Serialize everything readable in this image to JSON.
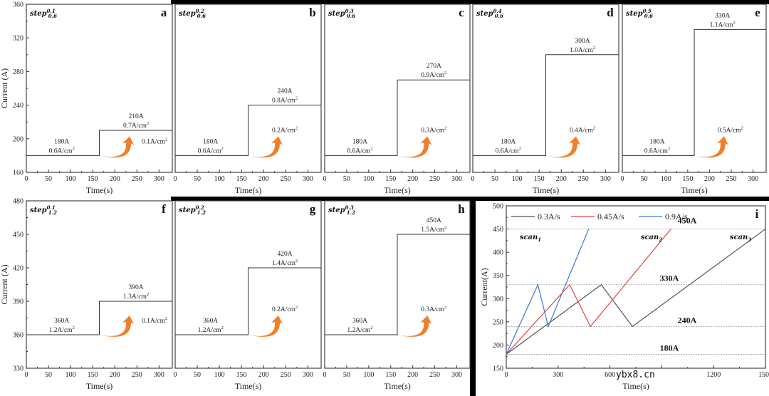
{
  "chart_data": [
    {
      "id": "a",
      "type": "line",
      "letter": "a",
      "step_label": {
        "base": "step",
        "sup": "0.1",
        "sub": "0.6"
      },
      "xlabel": "Time(s)",
      "ylabel": "Current (A)",
      "xlim": [
        0,
        330
      ],
      "ylim": [
        160,
        360
      ],
      "xticks": [
        0,
        50,
        100,
        150,
        200,
        250,
        300
      ],
      "yticks": [
        160,
        200,
        240,
        280,
        320,
        360
      ],
      "x": [
        0,
        165,
        165,
        330
      ],
      "y": [
        180,
        180,
        210,
        210
      ],
      "low": {
        "current": "180A",
        "density": "0.6A/cm",
        "sup": "2"
      },
      "high": {
        "current": "210A",
        "density": "0.7A/cm",
        "sup": "2"
      },
      "step": {
        "density": "0.1A/cm",
        "sup": "2"
      }
    },
    {
      "id": "b",
      "type": "line",
      "letter": "b",
      "step_label": {
        "base": "step",
        "sup": "0.2",
        "sub": "0.6"
      },
      "xlabel": "Time(s)",
      "ylabel": "",
      "xlim": [
        0,
        330
      ],
      "ylim": [
        160,
        360
      ],
      "xticks": [
        0,
        50,
        100,
        150,
        200,
        250,
        300
      ],
      "yticks": [],
      "x": [
        0,
        165,
        165,
        330
      ],
      "y": [
        180,
        180,
        240,
        240
      ],
      "low": {
        "current": "180A",
        "density": "0.6A/cm",
        "sup": "2"
      },
      "high": {
        "current": "240A",
        "density": "0.8A/cm",
        "sup": "2"
      },
      "step": {
        "density": "0.2A/cm",
        "sup": "2"
      }
    },
    {
      "id": "c",
      "type": "line",
      "letter": "c",
      "step_label": {
        "base": "step",
        "sup": "0.3",
        "sub": "0.6"
      },
      "xlabel": "Time(s)",
      "ylabel": "",
      "xlim": [
        0,
        330
      ],
      "ylim": [
        160,
        360
      ],
      "xticks": [
        0,
        50,
        100,
        150,
        200,
        250,
        300
      ],
      "yticks": [],
      "x": [
        0,
        165,
        165,
        330
      ],
      "y": [
        180,
        180,
        270,
        270
      ],
      "low": {
        "current": "180A",
        "density": "0.6A/cm",
        "sup": "2"
      },
      "high": {
        "current": "270A",
        "density": "0.9A/cm",
        "sup": "2"
      },
      "step": {
        "density": "0.3A/cm",
        "sup": "2"
      }
    },
    {
      "id": "d",
      "type": "line",
      "letter": "d",
      "step_label": {
        "base": "step",
        "sup": "0.4",
        "sub": "0.6"
      },
      "xlabel": "Time(s)",
      "ylabel": "",
      "xlim": [
        0,
        330
      ],
      "ylim": [
        160,
        360
      ],
      "xticks": [
        0,
        50,
        100,
        150,
        200,
        250,
        300
      ],
      "yticks": [],
      "x": [
        0,
        165,
        165,
        330
      ],
      "y": [
        180,
        180,
        300,
        300
      ],
      "low": {
        "current": "180A",
        "density": "0.6A/cm",
        "sup": "2"
      },
      "high": {
        "current": "300A",
        "density": "1.0A/cm",
        "sup": "2"
      },
      "step": {
        "density": "0.4A/cm",
        "sup": "2"
      }
    },
    {
      "id": "e",
      "type": "line",
      "letter": "e",
      "step_label": {
        "base": "step",
        "sup": "0.5",
        "sub": "0.6"
      },
      "xlabel": "Time(s)",
      "ylabel": "",
      "xlim": [
        0,
        330
      ],
      "ylim": [
        160,
        360
      ],
      "xticks": [
        0,
        50,
        100,
        150,
        200,
        250,
        300
      ],
      "yticks": [],
      "x": [
        0,
        165,
        165,
        330
      ],
      "y": [
        180,
        180,
        330,
        330
      ],
      "low": {
        "current": "180A",
        "density": "0.6A/cm",
        "sup": "2"
      },
      "high": {
        "current": "330A",
        "density": "1.1A/cm",
        "sup": "2"
      },
      "step": {
        "density": "0.5A/cm",
        "sup": "2"
      }
    },
    {
      "id": "f",
      "type": "line",
      "letter": "f",
      "step_label": {
        "base": "step",
        "sup": "0.1",
        "sub": "1.2"
      },
      "xlabel": "Time(s)",
      "ylabel": "Current (A)",
      "xlim": [
        0,
        330
      ],
      "ylim": [
        330,
        480
      ],
      "xticks": [
        0,
        50,
        100,
        150,
        200,
        250,
        300
      ],
      "yticks": [
        330,
        360,
        390,
        420,
        450,
        480
      ],
      "x": [
        0,
        165,
        165,
        330
      ],
      "y": [
        360,
        360,
        390,
        390
      ],
      "low": {
        "current": "360A",
        "density": "1.2A/cm",
        "sup": "2"
      },
      "high": {
        "current": "390A",
        "density": "1.3A/cm",
        "sup": "2"
      },
      "step": {
        "density": "0.1A/cm",
        "sup": "2"
      }
    },
    {
      "id": "g",
      "type": "line",
      "letter": "g",
      "step_label": {
        "base": "step",
        "sup": "0.2",
        "sub": "1.2"
      },
      "xlabel": "Time(s)",
      "ylabel": "",
      "xlim": [
        0,
        330
      ],
      "ylim": [
        330,
        480
      ],
      "xticks": [
        0,
        50,
        100,
        150,
        200,
        250,
        300
      ],
      "yticks": [],
      "x": [
        0,
        165,
        165,
        330
      ],
      "y": [
        360,
        360,
        420,
        420
      ],
      "low": {
        "current": "360A",
        "density": "1.2A/cm",
        "sup": "2"
      },
      "high": {
        "current": "420A",
        "density": "1.4A/cm",
        "sup": "2"
      },
      "step": {
        "density": "0.2A/cm",
        "sup": "2"
      }
    },
    {
      "id": "h",
      "type": "line",
      "letter": "h",
      "step_label": {
        "base": "step",
        "sup": "0.3",
        "sub": "1.2"
      },
      "xlabel": "Time(s)",
      "ylabel": "",
      "xlim": [
        0,
        330
      ],
      "ylim": [
        330,
        480
      ],
      "xticks": [
        0,
        50,
        100,
        150,
        200,
        250,
        300
      ],
      "yticks": [],
      "x": [
        0,
        165,
        165,
        330
      ],
      "y": [
        360,
        360,
        450,
        450
      ],
      "low": {
        "current": "360A",
        "density": "1.2A/cm",
        "sup": "2"
      },
      "high": {
        "current": "450A",
        "density": "1.5A/cm",
        "sup": "2"
      },
      "step": {
        "density": "0.3A/cm",
        "sup": "2"
      }
    },
    {
      "id": "i",
      "type": "line",
      "letter": "i",
      "xlabel": "Time(s)",
      "ylabel": "Current(A)",
      "xlim": [
        0,
        1500
      ],
      "ylim": [
        150,
        500
      ],
      "xticks": [
        0,
        300,
        600,
        900,
        1200,
        1500
      ],
      "xticklabels": [
        "0",
        "300",
        "600",
        "",
        "1200",
        "1500"
      ],
      "yticks": [
        150,
        200,
        250,
        300,
        350,
        400,
        450,
        500
      ],
      "legend": "top-left",
      "reference_lines": [
        {
          "y": 450,
          "label": "450A"
        },
        {
          "y": 330,
          "label": "330A"
        },
        {
          "y": 240,
          "label": "240A"
        },
        {
          "y": 180,
          "label": "180A"
        }
      ],
      "series": [
        {
          "name": "0.3A/s",
          "color": "#555555",
          "x": [
            0,
            550,
            730,
            1500
          ],
          "y": [
            180,
            330,
            240,
            450
          ],
          "scan_label": {
            "base": "scan",
            "sub": "3"
          }
        },
        {
          "name": "0.45A/s",
          "color": "#e8413c",
          "x": [
            0,
            367,
            487,
            953
          ],
          "y": [
            180,
            330,
            240,
            450
          ],
          "scan_label": {
            "base": "scan",
            "sub": "2"
          }
        },
        {
          "name": "0.9A/s",
          "color": "#3a78d4",
          "x": [
            0,
            183,
            243,
            477
          ],
          "y": [
            180,
            330,
            240,
            450
          ],
          "scan_label": {
            "base": "scan",
            "sub": "1"
          }
        }
      ]
    }
  ],
  "watermark": "ybx8.cn",
  "colors": {
    "arrow": "#f07f2a",
    "axis": "#333333",
    "frame_dark": "#000000"
  }
}
